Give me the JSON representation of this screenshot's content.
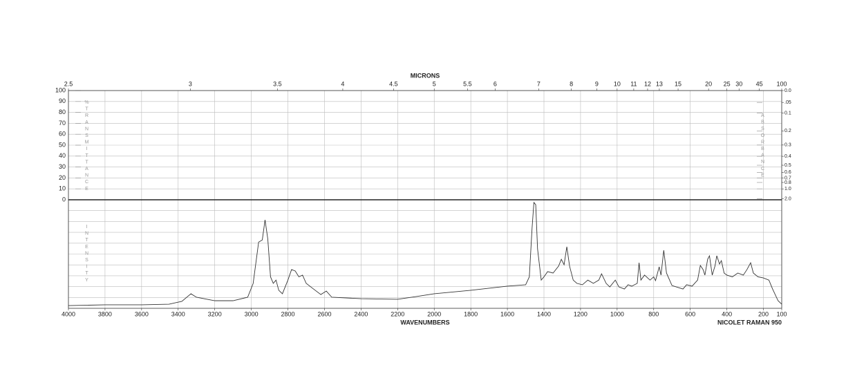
{
  "chart_data": {
    "type": "line",
    "x2label": "MICRONS",
    "x2_transform": "reciprocal",
    "x2ticks": [
      2.5,
      3,
      3.5,
      4,
      4.5,
      5,
      5.5,
      6,
      7,
      8,
      9,
      10,
      11,
      12,
      13,
      15,
      20,
      25,
      30,
      45,
      100
    ],
    "xlabel": "WAVENUMBERS",
    "instrument": "NICOLET RAMAN 950",
    "xlim": [
      4000,
      100
    ],
    "xticks": [
      4000,
      3800,
      3600,
      3400,
      3200,
      3000,
      2800,
      2600,
      2400,
      2200,
      2000,
      1800,
      1600,
      1400,
      1200,
      1000,
      800,
      600,
      400,
      200,
      100
    ],
    "transmittance_axis": {
      "label": "%TRANSMITTANCE",
      "ylim": [
        0,
        100
      ],
      "yticks": [
        0,
        10,
        20,
        30,
        40,
        50,
        60,
        70,
        80,
        90,
        100
      ]
    },
    "absorbance_axis": {
      "label": "ABSORBANCE",
      "ticks": [
        {
          "value": 0,
          "label": "0.0"
        },
        {
          "value": 0.05,
          "label": ".05"
        },
        0.1,
        0.2,
        0.3,
        0.4,
        0.5,
        0.6,
        0.7,
        {
          "value": 0.8,
          "label": "0.8"
        },
        {
          "value": 1,
          "label": "1.0"
        },
        {
          "value": 2,
          "label": "2.0"
        }
      ]
    },
    "intensity_label": "INTENSITY",
    "ylim": [
      0,
      100
    ],
    "grid": true,
    "color": "#333333",
    "x": [
      4000,
      3800,
      3600,
      3450,
      3380,
      3330,
      3300,
      3200,
      3100,
      3020,
      2990,
      2960,
      2940,
      2925,
      2910,
      2895,
      2880,
      2865,
      2850,
      2830,
      2800,
      2780,
      2760,
      2740,
      2720,
      2700,
      2660,
      2620,
      2590,
      2560,
      2400,
      2200,
      2100,
      2000,
      1800,
      1600,
      1500,
      1480,
      1465,
      1455,
      1445,
      1435,
      1415,
      1400,
      1380,
      1350,
      1320,
      1305,
      1290,
      1275,
      1260,
      1240,
      1220,
      1190,
      1160,
      1130,
      1100,
      1085,
      1060,
      1040,
      1010,
      990,
      960,
      940,
      920,
      890,
      880,
      870,
      850,
      820,
      800,
      790,
      770,
      760,
      745,
      730,
      700,
      640,
      620,
      590,
      560,
      545,
      530,
      520,
      505,
      495,
      480,
      465,
      455,
      440,
      430,
      415,
      400,
      370,
      340,
      310,
      290,
      270,
      255,
      230,
      200,
      170,
      150,
      120,
      100
    ],
    "values": [
      2.5,
      3.2,
      3.2,
      3.8,
      6.4,
      13.4,
      10.2,
      7.0,
      7.0,
      10.2,
      22.9,
      61,
      63,
      81.5,
      64,
      29,
      23,
      26,
      16.6,
      13.4,
      26,
      35.7,
      34.4,
      29,
      30.6,
      23,
      17.8,
      12.7,
      15.9,
      10.2,
      8.9,
      8.3,
      10.8,
      13.4,
      16.6,
      20.4,
      21.7,
      29,
      73.9,
      97.5,
      95.5,
      54.8,
      26,
      29,
      33.8,
      32.5,
      38.9,
      45.2,
      40.1,
      56.7,
      38.9,
      26,
      23,
      21.7,
      26,
      23,
      26,
      31.8,
      23,
      19.7,
      26,
      19.7,
      17.8,
      21.7,
      20.4,
      23,
      42,
      26,
      30.6,
      26,
      29,
      25.5,
      38.2,
      30.6,
      53.5,
      32.5,
      21,
      17.8,
      21.7,
      20.4,
      26,
      39.5,
      35.7,
      30.6,
      45.2,
      48.4,
      30.6,
      38.9,
      48.4,
      40.8,
      43.9,
      32.5,
      30.6,
      29,
      32.5,
      30.6,
      35.7,
      42,
      32.5,
      29,
      28,
      26,
      17.8,
      7,
      3.8
    ]
  }
}
